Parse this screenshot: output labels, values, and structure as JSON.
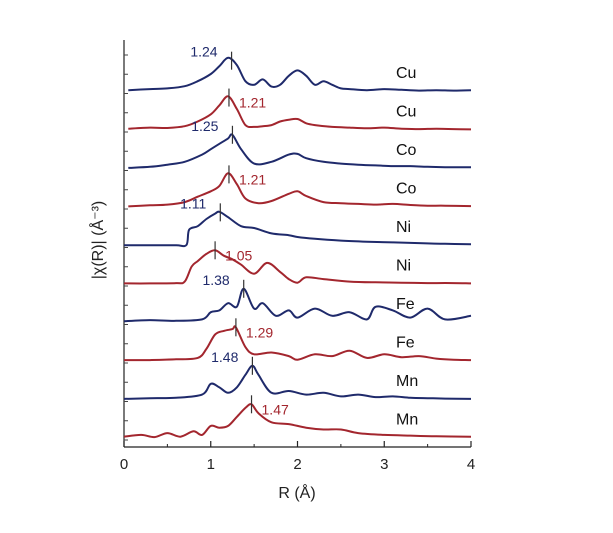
{
  "chart_data": {
    "type": "line",
    "xlabel": "R (Å)",
    "ylabel": "|χ(R)| (Å⁻³)",
    "xlim": [
      0,
      4
    ],
    "xticks": [
      "0",
      "1",
      "2",
      "3",
      "4"
    ],
    "colors": {
      "blue": "#1f2a6b",
      "red": "#a3262e"
    },
    "series": [
      {
        "label": "Cu",
        "color": "blue",
        "peak": 1.24,
        "peak_label": "1.24",
        "peak_side": "left",
        "x": [
          0.05,
          0.3,
          0.5,
          0.7,
          0.85,
          1.0,
          1.1,
          1.2,
          1.3,
          1.4,
          1.5,
          1.6,
          1.7,
          1.8,
          1.9,
          2.0,
          2.1,
          2.2,
          2.3,
          2.4,
          2.5,
          2.6,
          2.8,
          3.0,
          3.2,
          3.4,
          3.6,
          3.8,
          4.0
        ],
        "y": [
          0.05,
          0.08,
          0.1,
          0.16,
          0.3,
          0.5,
          0.72,
          0.95,
          0.75,
          0.3,
          0.2,
          0.35,
          0.15,
          0.2,
          0.45,
          0.6,
          0.45,
          0.2,
          0.3,
          0.2,
          0.1,
          0.08,
          0.05,
          0.08,
          0.06,
          0.04,
          0.05,
          0.04,
          0.05
        ]
      },
      {
        "label": "Cu",
        "color": "red",
        "peak": 1.21,
        "peak_label": "1.21",
        "peak_side": "right",
        "x": [
          0.05,
          0.3,
          0.5,
          0.7,
          0.85,
          1.0,
          1.1,
          1.2,
          1.3,
          1.4,
          1.5,
          1.6,
          1.7,
          1.8,
          1.9,
          2.0,
          2.1,
          2.2,
          2.4,
          2.6,
          2.8,
          3.0,
          3.2,
          3.4,
          3.6,
          3.8,
          4.0
        ],
        "y": [
          0.05,
          0.08,
          0.07,
          0.12,
          0.25,
          0.45,
          0.7,
          0.95,
          0.6,
          0.15,
          0.1,
          0.12,
          0.15,
          0.25,
          0.3,
          0.32,
          0.2,
          0.15,
          0.1,
          0.08,
          0.06,
          0.08,
          0.05,
          0.04,
          0.05,
          0.04,
          0.03
        ]
      },
      {
        "label": "Co",
        "color": "blue",
        "peak": 1.25,
        "peak_label": "1.25",
        "peak_side": "left",
        "x": [
          0.05,
          0.3,
          0.5,
          0.7,
          0.9,
          1.0,
          1.1,
          1.2,
          1.25,
          1.35,
          1.5,
          1.7,
          1.9,
          2.0,
          2.1,
          2.3,
          2.5,
          2.7,
          2.9,
          3.1,
          3.3,
          3.5,
          3.7,
          4.0
        ],
        "y": [
          0.03,
          0.06,
          0.12,
          0.2,
          0.4,
          0.55,
          0.7,
          0.85,
          0.95,
          0.55,
          0.15,
          0.2,
          0.4,
          0.42,
          0.3,
          0.2,
          0.15,
          0.12,
          0.1,
          0.08,
          0.08,
          0.06,
          0.05,
          0.05
        ]
      },
      {
        "label": "Co",
        "color": "red",
        "peak": 1.21,
        "peak_label": "1.21",
        "peak_side": "right",
        "x": [
          0.05,
          0.3,
          0.5,
          0.7,
          0.85,
          1.0,
          1.1,
          1.2,
          1.3,
          1.4,
          1.55,
          1.7,
          1.9,
          2.0,
          2.1,
          2.3,
          2.5,
          2.7,
          2.9,
          3.1,
          3.3,
          3.5,
          3.7,
          4.0
        ],
        "y": [
          0.03,
          0.06,
          0.08,
          0.15,
          0.3,
          0.45,
          0.6,
          0.95,
          0.65,
          0.25,
          0.12,
          0.18,
          0.38,
          0.45,
          0.32,
          0.15,
          0.12,
          0.1,
          0.08,
          0.1,
          0.07,
          0.05,
          0.05,
          0.04
        ]
      },
      {
        "label": "Ni",
        "color": "blue",
        "peak": 1.11,
        "peak_label": "1.11",
        "peak_side": "left",
        "x": [
          0.0,
          0.3,
          0.6,
          0.72,
          0.75,
          0.85,
          0.95,
          1.05,
          1.1,
          1.2,
          1.35,
          1.5,
          1.7,
          1.9,
          2.0,
          2.2,
          2.5,
          2.8,
          3.1,
          3.4,
          3.7,
          4.0
        ],
        "y": [
          0.02,
          0.02,
          0.02,
          0.03,
          0.45,
          0.55,
          0.75,
          0.9,
          0.95,
          0.8,
          0.55,
          0.5,
          0.35,
          0.3,
          0.25,
          0.2,
          0.15,
          0.12,
          0.1,
          0.08,
          0.06,
          0.05
        ]
      },
      {
        "label": "Ni",
        "color": "red",
        "peak": 1.05,
        "peak_label": "1.05",
        "peak_side": "right",
        "x": [
          0.0,
          0.3,
          0.6,
          0.7,
          0.78,
          0.85,
          0.95,
          1.05,
          1.15,
          1.25,
          1.35,
          1.5,
          1.65,
          1.8,
          1.9,
          2.0,
          2.1,
          2.3,
          2.6,
          2.9,
          3.2,
          3.5,
          3.8,
          4.0
        ],
        "y": [
          0.03,
          0.03,
          0.04,
          0.08,
          0.5,
          0.65,
          0.85,
          0.95,
          0.8,
          0.7,
          0.55,
          0.3,
          0.6,
          0.35,
          0.15,
          0.05,
          0.2,
          0.15,
          0.08,
          0.06,
          0.05,
          0.04,
          0.04,
          0.03
        ]
      },
      {
        "label": "Fe",
        "color": "blue",
        "peak": 1.38,
        "peak_label": "1.38",
        "peak_side": "left",
        "x": [
          0.0,
          0.3,
          0.6,
          0.9,
          1.0,
          1.1,
          1.2,
          1.3,
          1.38,
          1.5,
          1.6,
          1.75,
          1.9,
          2.0,
          2.2,
          2.4,
          2.6,
          2.8,
          2.9,
          3.1,
          3.3,
          3.5,
          3.7,
          4.0
        ],
        "y": [
          0.05,
          0.08,
          0.06,
          0.1,
          0.3,
          0.35,
          0.55,
          0.45,
          0.95,
          0.4,
          0.55,
          0.2,
          0.35,
          0.15,
          0.4,
          0.2,
          0.3,
          0.1,
          0.45,
          0.35,
          0.15,
          0.4,
          0.1,
          0.2
        ]
      },
      {
        "label": "Fe",
        "color": "red",
        "peak": 1.29,
        "peak_label": "1.29",
        "peak_side": "right",
        "x": [
          0.0,
          0.3,
          0.6,
          0.85,
          0.95,
          1.05,
          1.15,
          1.25,
          1.29,
          1.4,
          1.5,
          1.7,
          1.9,
          2.0,
          2.2,
          2.4,
          2.6,
          2.8,
          3.0,
          3.2,
          3.4,
          3.6,
          3.8,
          4.0
        ],
        "y": [
          0.04,
          0.04,
          0.06,
          0.1,
          0.35,
          0.75,
          0.85,
          0.9,
          0.95,
          0.4,
          0.2,
          0.25,
          0.15,
          0.05,
          0.2,
          0.15,
          0.3,
          0.1,
          0.2,
          0.12,
          0.15,
          0.08,
          0.05,
          0.04
        ]
      },
      {
        "label": "Mn",
        "color": "blue",
        "peak": 1.48,
        "peak_label": "1.48",
        "peak_side": "left",
        "x": [
          0.0,
          0.3,
          0.6,
          0.9,
          1.0,
          1.1,
          1.2,
          1.3,
          1.4,
          1.48,
          1.55,
          1.7,
          1.9,
          2.1,
          2.3,
          2.5,
          2.7,
          2.9,
          3.1,
          3.3,
          3.5,
          3.7,
          4.0
        ],
        "y": [
          0.03,
          0.05,
          0.06,
          0.15,
          0.45,
          0.35,
          0.2,
          0.35,
          0.7,
          0.95,
          0.7,
          0.2,
          0.25,
          0.15,
          0.2,
          0.1,
          0.15,
          0.08,
          0.1,
          0.06,
          0.05,
          0.04,
          0.03
        ]
      },
      {
        "label": "Mn",
        "color": "red",
        "peak": 1.47,
        "peak_label": "1.47",
        "peak_side": "right",
        "x": [
          0.0,
          0.2,
          0.35,
          0.5,
          0.65,
          0.8,
          0.9,
          1.0,
          1.1,
          1.2,
          1.3,
          1.4,
          1.47,
          1.55,
          1.7,
          1.9,
          2.1,
          2.3,
          2.5,
          2.7,
          3.0,
          3.3,
          3.6,
          4.0
        ],
        "y": [
          0.05,
          0.1,
          0.04,
          0.15,
          0.05,
          0.2,
          0.1,
          0.35,
          0.3,
          0.35,
          0.6,
          0.85,
          0.95,
          0.7,
          0.45,
          0.4,
          0.3,
          0.25,
          0.25,
          0.15,
          0.1,
          0.08,
          0.06,
          0.05
        ]
      }
    ]
  }
}
